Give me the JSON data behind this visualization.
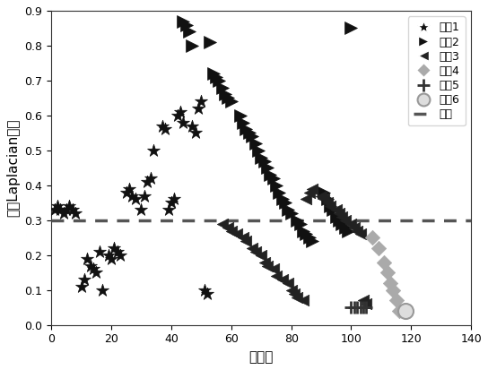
{
  "title": "",
  "xlabel": "特征号",
  "ylabel": "特征Laplacian得分",
  "xlim": [
    0,
    140
  ],
  "ylim": [
    0,
    0.9
  ],
  "xticks": [
    0,
    20,
    40,
    60,
    80,
    100,
    120,
    140
  ],
  "yticks": [
    0.0,
    0.1,
    0.2,
    0.3,
    0.4,
    0.5,
    0.6,
    0.7,
    0.8,
    0.9
  ],
  "threshold": 0.3,
  "bg_color": "#ffffff",
  "legend_labels": [
    "类别1",
    "类别2",
    "类别3",
    "类别4",
    "类别5",
    "类别6",
    "阈值"
  ],
  "cat1_color": "#111111",
  "cat2_color": "#111111",
  "cat3_color": "#222222",
  "cat4_color": "#aaaaaa",
  "cat5_color": "#333333",
  "cat6_edgecolor": "#999999",
  "threshold_color": "#555555",
  "cat1_x": [
    1,
    2,
    3,
    4,
    5,
    6,
    7,
    8,
    10,
    11,
    12,
    13,
    14,
    15,
    16,
    17,
    19,
    20,
    21,
    22,
    23,
    25,
    26,
    27,
    28,
    30,
    31,
    32,
    33,
    34,
    37,
    38,
    39,
    40,
    41,
    42,
    43,
    44,
    47,
    48,
    49,
    50,
    51,
    52
  ],
  "cat1_y": [
    0.33,
    0.34,
    0.33,
    0.32,
    0.33,
    0.34,
    0.33,
    0.32,
    0.11,
    0.13,
    0.19,
    0.17,
    0.16,
    0.15,
    0.21,
    0.1,
    0.2,
    0.19,
    0.22,
    0.21,
    0.2,
    0.38,
    0.39,
    0.37,
    0.36,
    0.33,
    0.37,
    0.41,
    0.42,
    0.5,
    0.57,
    0.56,
    0.33,
    0.35,
    0.36,
    0.6,
    0.61,
    0.58,
    0.57,
    0.55,
    0.62,
    0.64,
    0.1,
    0.09
  ],
  "cat2_x": [
    44,
    45,
    46,
    47,
    53,
    54,
    55,
    56,
    57,
    58,
    59,
    60,
    63,
    64,
    65,
    66,
    67,
    68,
    69,
    70,
    71,
    72,
    73,
    74,
    75,
    76,
    77,
    78,
    79,
    80,
    82,
    83,
    84,
    85,
    86,
    87,
    91,
    92,
    93,
    94,
    95,
    96,
    97,
    98,
    99,
    100
  ],
  "cat2_y": [
    0.87,
    0.86,
    0.84,
    0.8,
    0.81,
    0.72,
    0.71,
    0.7,
    0.68,
    0.66,
    0.65,
    0.64,
    0.6,
    0.58,
    0.56,
    0.55,
    0.54,
    0.52,
    0.5,
    0.48,
    0.47,
    0.45,
    0.43,
    0.42,
    0.4,
    0.38,
    0.36,
    0.35,
    0.33,
    0.32,
    0.3,
    0.29,
    0.27,
    0.26,
    0.25,
    0.24,
    0.38,
    0.36,
    0.34,
    0.33,
    0.31,
    0.3,
    0.29,
    0.28,
    0.27,
    0.85
  ],
  "cat3_x": [
    57,
    59,
    60,
    62,
    64,
    65,
    67,
    68,
    70,
    71,
    72,
    74,
    75,
    77,
    79,
    80,
    81,
    82,
    84,
    85,
    86,
    87,
    90,
    91,
    92,
    93,
    95,
    96,
    97,
    98,
    100,
    101,
    102,
    103,
    104,
    105
  ],
  "cat3_y": [
    0.29,
    0.28,
    0.27,
    0.26,
    0.25,
    0.24,
    0.22,
    0.21,
    0.2,
    0.18,
    0.17,
    0.16,
    0.14,
    0.13,
    0.12,
    0.1,
    0.09,
    0.08,
    0.07,
    0.36,
    0.38,
    0.39,
    0.37,
    0.36,
    0.35,
    0.34,
    0.33,
    0.32,
    0.31,
    0.3,
    0.29,
    0.28,
    0.27,
    0.26,
    0.07,
    0.06
  ],
  "cat4_x": [
    107,
    109,
    111,
    112,
    113,
    114,
    115,
    116
  ],
  "cat4_y": [
    0.25,
    0.22,
    0.18,
    0.15,
    0.12,
    0.1,
    0.07,
    0.04
  ],
  "cat5_x": [
    100,
    101,
    102,
    103,
    104,
    105
  ],
  "cat5_y": [
    0.05,
    0.05,
    0.05,
    0.05,
    0.05,
    0.05
  ],
  "cat6_x": [
    118
  ],
  "cat6_y": [
    0.04
  ]
}
